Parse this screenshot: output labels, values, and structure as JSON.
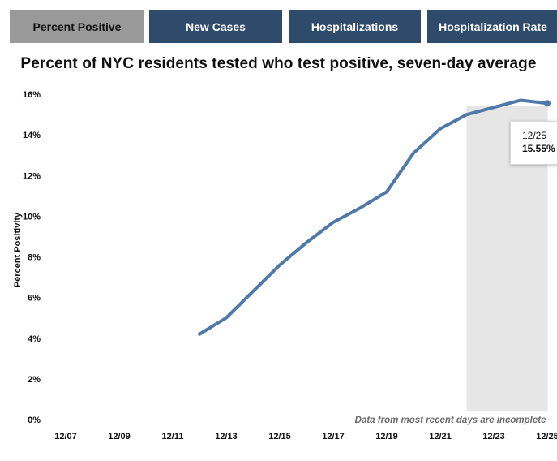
{
  "tabs": [
    {
      "label": "Percent Positive",
      "active": true
    },
    {
      "label": "New Cases",
      "active": false
    },
    {
      "label": "Hospitalizations",
      "active": false
    },
    {
      "label": "Hospitalization Rate",
      "active": false
    }
  ],
  "colors": {
    "tab_active_bg": "#999999",
    "tab_bg": "#2f4b6c",
    "line": "#4f79a8",
    "shade": "#e6e6e6"
  },
  "tooltip": {
    "date": "12/25",
    "value": "15.55%"
  },
  "chart_data": {
    "type": "line",
    "title": "Percent of NYC residents tested who test positive, seven-day average",
    "xlabel": "",
    "ylabel": "Percent Positivity",
    "x_ticks": [
      "12/07",
      "12/09",
      "12/11",
      "12/13",
      "12/15",
      "12/17",
      "12/19",
      "12/21",
      "12/23",
      "12/25"
    ],
    "y_ticks": [
      "0%",
      "2%",
      "4%",
      "6%",
      "8%",
      "10%",
      "12%",
      "14%",
      "16%"
    ],
    "ylim": [
      0,
      16
    ],
    "x_range": [
      "12/07",
      "12/25"
    ],
    "grid": false,
    "shaded_region": {
      "from": "12/22",
      "to": "12/25"
    },
    "annotation": "Data from most recent days are incomplete",
    "series": [
      {
        "x": [
          "12/12",
          "12/13",
          "12/14",
          "12/15",
          "12/16",
          "12/17",
          "12/18",
          "12/19",
          "12/20",
          "12/21",
          "12/22",
          "12/23",
          "12/24",
          "12/25"
        ],
        "values": [
          4.2,
          5.0,
          6.3,
          7.6,
          8.7,
          9.7,
          10.4,
          11.2,
          13.1,
          14.3,
          15.0,
          15.35,
          15.7,
          15.55
        ]
      }
    ]
  }
}
